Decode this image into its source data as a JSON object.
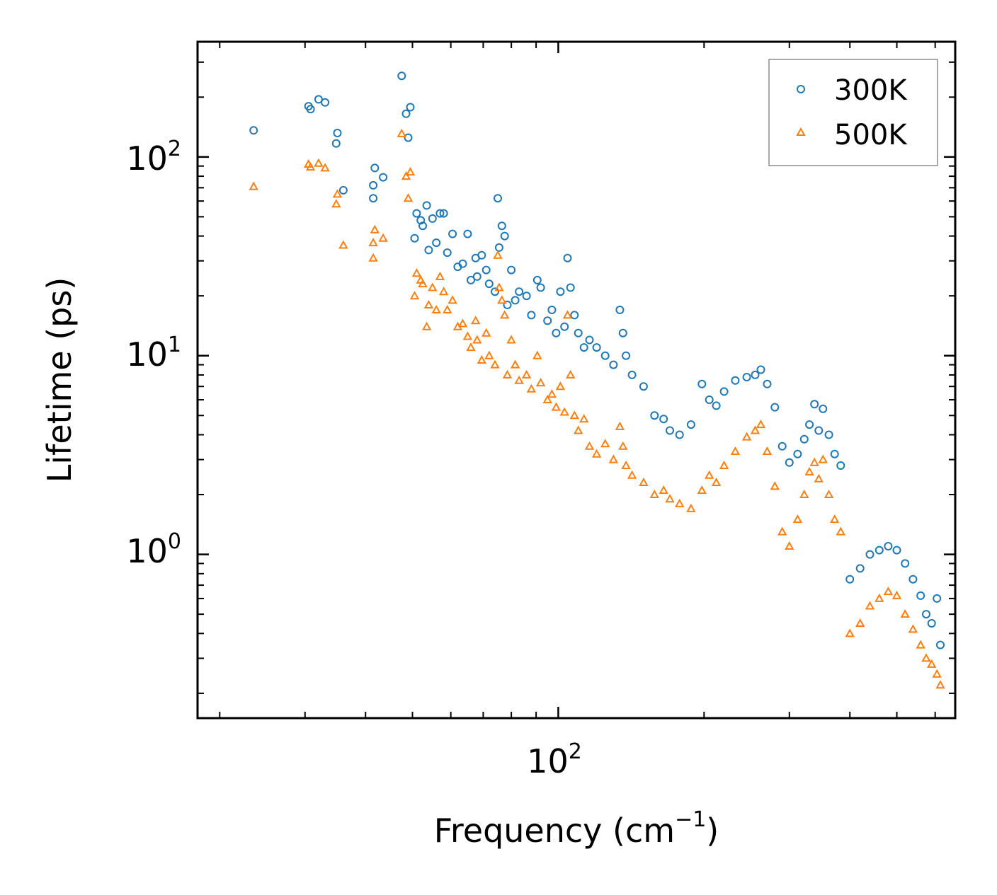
{
  "chart_data": {
    "type": "scatter",
    "xscale": "log",
    "yscale": "log",
    "xlim": [
      18,
      660
    ],
    "ylim": [
      0.15,
      380
    ],
    "xlabel": "Frequency (cm",
    "xlabel_sup": "−1",
    "xlabel_close": ")",
    "ylabel": "Lifetime (ps)",
    "x_ticks": [
      {
        "base": "10",
        "exp": "2",
        "value": 100
      }
    ],
    "y_ticks": [
      {
        "base": "10",
        "exp": "0",
        "value": 1
      },
      {
        "base": "10",
        "exp": "1",
        "value": 10
      },
      {
        "base": "10",
        "exp": "2",
        "value": 100
      }
    ],
    "legend_position": "top-right",
    "series": [
      {
        "name": "300K",
        "marker": "circle",
        "color": "#1f77b4",
        "points": [
          [
            23.5,
            136
          ],
          [
            30.5,
            180
          ],
          [
            30.8,
            174
          ],
          [
            32.0,
            195
          ],
          [
            33.0,
            188
          ],
          [
            34.8,
            117
          ],
          [
            35.0,
            132
          ],
          [
            36.0,
            68
          ],
          [
            41.5,
            72
          ],
          [
            41.5,
            62
          ],
          [
            41.8,
            88
          ],
          [
            43.5,
            79
          ],
          [
            47.5,
            256
          ],
          [
            48.5,
            165
          ],
          [
            49.0,
            125
          ],
          [
            49.5,
            178
          ],
          [
            50.5,
            39
          ],
          [
            51.0,
            52
          ],
          [
            52.0,
            48
          ],
          [
            52.5,
            45
          ],
          [
            53.5,
            57
          ],
          [
            54.0,
            34
          ],
          [
            55.0,
            49
          ],
          [
            56.0,
            37
          ],
          [
            57.0,
            52
          ],
          [
            58.0,
            52
          ],
          [
            59.0,
            33
          ],
          [
            60.5,
            41
          ],
          [
            62.0,
            28
          ],
          [
            63.5,
            29
          ],
          [
            65.0,
            41
          ],
          [
            66.0,
            24
          ],
          [
            67.5,
            31
          ],
          [
            68.0,
            25
          ],
          [
            69.5,
            32
          ],
          [
            71.0,
            27
          ],
          [
            72.0,
            23
          ],
          [
            74.0,
            21
          ],
          [
            75.0,
            62
          ],
          [
            75.5,
            35
          ],
          [
            76.5,
            45
          ],
          [
            77.5,
            40
          ],
          [
            78.5,
            18
          ],
          [
            80.0,
            27
          ],
          [
            81.5,
            19
          ],
          [
            83.0,
            21
          ],
          [
            86.0,
            20
          ],
          [
            88.0,
            16
          ],
          [
            90.5,
            24
          ],
          [
            92.0,
            22
          ],
          [
            95.0,
            15
          ],
          [
            97.0,
            17
          ],
          [
            99.0,
            13
          ],
          [
            101.0,
            21
          ],
          [
            103.0,
            14
          ],
          [
            104.5,
            31
          ],
          [
            106.0,
            22
          ],
          [
            108.0,
            16
          ],
          [
            110.0,
            13
          ],
          [
            113.0,
            11
          ],
          [
            116.0,
            12
          ],
          [
            120.0,
            11
          ],
          [
            125.0,
            10
          ],
          [
            130.0,
            9
          ],
          [
            134.0,
            17
          ],
          [
            136.0,
            13
          ],
          [
            138.0,
            10
          ],
          [
            142.0,
            8
          ],
          [
            150.0,
            7
          ],
          [
            158.0,
            5
          ],
          [
            165.0,
            4.8
          ],
          [
            170.0,
            4.2
          ],
          [
            178.0,
            4.0
          ],
          [
            188.0,
            4.5
          ],
          [
            198.0,
            7.2
          ],
          [
            205.0,
            6.0
          ],
          [
            212.0,
            5.6
          ],
          [
            220.0,
            6.6
          ],
          [
            232.0,
            7.5
          ],
          [
            245.0,
            7.8
          ],
          [
            255.0,
            8.0
          ],
          [
            262.0,
            8.5
          ],
          [
            270.0,
            7.2
          ],
          [
            280.0,
            5.5
          ],
          [
            290.0,
            3.5
          ],
          [
            300.0,
            2.9
          ],
          [
            312.0,
            3.2
          ],
          [
            322.0,
            3.8
          ],
          [
            330.0,
            4.5
          ],
          [
            338.0,
            5.7
          ],
          [
            345.0,
            4.2
          ],
          [
            352.0,
            5.4
          ],
          [
            362.0,
            4.0
          ],
          [
            372.0,
            3.2
          ],
          [
            383.0,
            2.8
          ],
          [
            400.0,
            0.75
          ],
          [
            420.0,
            0.85
          ],
          [
            440.0,
            1.0
          ],
          [
            460.0,
            1.05
          ],
          [
            480.0,
            1.1
          ],
          [
            500.0,
            1.05
          ],
          [
            520.0,
            0.9
          ],
          [
            540.0,
            0.75
          ],
          [
            560.0,
            0.62
          ],
          [
            575.0,
            0.5
          ],
          [
            590.0,
            0.45
          ],
          [
            605.0,
            0.6
          ],
          [
            615.0,
            0.35
          ]
        ]
      },
      {
        "name": "500K",
        "marker": "triangle",
        "color": "#ff7f0e",
        "points": [
          [
            23.5,
            71
          ],
          [
            30.5,
            92
          ],
          [
            30.8,
            89
          ],
          [
            32.0,
            93
          ],
          [
            33.0,
            88
          ],
          [
            34.8,
            58
          ],
          [
            35.0,
            65
          ],
          [
            36.0,
            36
          ],
          [
            41.5,
            31
          ],
          [
            41.5,
            37
          ],
          [
            41.8,
            43
          ],
          [
            43.5,
            39
          ],
          [
            47.5,
            131
          ],
          [
            48.5,
            80
          ],
          [
            49.0,
            62
          ],
          [
            49.5,
            84
          ],
          [
            50.5,
            20
          ],
          [
            51.0,
            26
          ],
          [
            52.0,
            24
          ],
          [
            52.5,
            23
          ],
          [
            53.5,
            14
          ],
          [
            54.0,
            18
          ],
          [
            55.0,
            22
          ],
          [
            56.0,
            17
          ],
          [
            57.0,
            25
          ],
          [
            58.0,
            21
          ],
          [
            59.0,
            17
          ],
          [
            60.5,
            19
          ],
          [
            62.0,
            14
          ],
          [
            63.5,
            14.5
          ],
          [
            65.0,
            12.5
          ],
          [
            66.0,
            11
          ],
          [
            67.5,
            15
          ],
          [
            68.0,
            12
          ],
          [
            69.5,
            9.5
          ],
          [
            71.0,
            13
          ],
          [
            72.0,
            10
          ],
          [
            74.0,
            9
          ],
          [
            75.0,
            32
          ],
          [
            75.5,
            22
          ],
          [
            76.5,
            19
          ],
          [
            77.5,
            16
          ],
          [
            78.5,
            8
          ],
          [
            80.0,
            12
          ],
          [
            81.5,
            9
          ],
          [
            83.0,
            7.5
          ],
          [
            86.0,
            8
          ],
          [
            88.0,
            6.8
          ],
          [
            90.5,
            10
          ],
          [
            92.0,
            7.3
          ],
          [
            95.0,
            6
          ],
          [
            97.0,
            6.4
          ],
          [
            99.0,
            5.5
          ],
          [
            101.0,
            7
          ],
          [
            103.0,
            5.2
          ],
          [
            104.5,
            16
          ],
          [
            106.0,
            8
          ],
          [
            108.0,
            5
          ],
          [
            110.0,
            4.2
          ],
          [
            113.0,
            4.8
          ],
          [
            116.0,
            3.5
          ],
          [
            120.0,
            3.2
          ],
          [
            125.0,
            3.6
          ],
          [
            130.0,
            3.0
          ],
          [
            134.0,
            4.4
          ],
          [
            136.0,
            3.5
          ],
          [
            138.0,
            2.8
          ],
          [
            142.0,
            2.5
          ],
          [
            150.0,
            2.3
          ],
          [
            158.0,
            2.0
          ],
          [
            165.0,
            2.1
          ],
          [
            170.0,
            1.9
          ],
          [
            178.0,
            1.8
          ],
          [
            188.0,
            1.7
          ],
          [
            198.0,
            2.1
          ],
          [
            205.0,
            2.5
          ],
          [
            212.0,
            2.3
          ],
          [
            220.0,
            2.8
          ],
          [
            232.0,
            3.3
          ],
          [
            245.0,
            3.9
          ],
          [
            255.0,
            4.2
          ],
          [
            262.0,
            4.5
          ],
          [
            270.0,
            3.3
          ],
          [
            280.0,
            2.2
          ],
          [
            290.0,
            1.3
          ],
          [
            300.0,
            1.1
          ],
          [
            312.0,
            1.5
          ],
          [
            322.0,
            2.0
          ],
          [
            330.0,
            2.6
          ],
          [
            338.0,
            2.9
          ],
          [
            345.0,
            2.4
          ],
          [
            352.0,
            3.0
          ],
          [
            362.0,
            2.0
          ],
          [
            372.0,
            1.5
          ],
          [
            383.0,
            1.3
          ],
          [
            400.0,
            0.4
          ],
          [
            420.0,
            0.45
          ],
          [
            440.0,
            0.55
          ],
          [
            460.0,
            0.6
          ],
          [
            480.0,
            0.65
          ],
          [
            500.0,
            0.62
          ],
          [
            520.0,
            0.5
          ],
          [
            540.0,
            0.42
          ],
          [
            560.0,
            0.35
          ],
          [
            575.0,
            0.3
          ],
          [
            590.0,
            0.28
          ],
          [
            605.0,
            0.25
          ],
          [
            615.0,
            0.22
          ]
        ]
      }
    ]
  }
}
